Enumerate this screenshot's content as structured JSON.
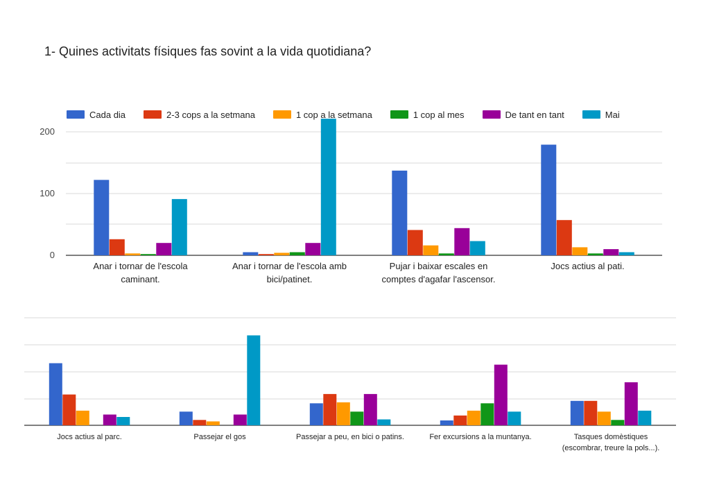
{
  "title": "1- Quines activitats físiques fas sovint a la vida quotidiana?",
  "legend_position": "top",
  "series_info": [
    {
      "name": "Cada dia",
      "color": "#3366cc"
    },
    {
      "name": "2-3 cops a la setmana",
      "color": "#dc3912"
    },
    {
      "name": "1 cop a la setmana",
      "color": "#ff9900"
    },
    {
      "name": "1 cop al mes",
      "color": "#109618"
    },
    {
      "name": "De tant en tant",
      "color": "#990099"
    },
    {
      "name": "Mai",
      "color": "#0099c6"
    }
  ],
  "chart_data": [
    {
      "type": "bar",
      "title": "1- Quines activitats físiques fas sovint a la vida quotidiana?",
      "xlabel": "",
      "ylabel": "",
      "ylim": [
        0,
        220
      ],
      "yticks": [
        0,
        100,
        200
      ],
      "grid": true,
      "categories": [
        [
          "Anar i tornar de l'escola",
          "caminant."
        ],
        [
          "Anar i tornar de l'escola amb",
          "bici/patinet."
        ],
        [
          "Pujar i baixar escales en",
          "comptes d'agafar l'ascensor."
        ],
        [
          "Jocs actius al pati."
        ]
      ],
      "series": [
        {
          "name": "Cada dia",
          "values": [
            122,
            5,
            137,
            179
          ]
        },
        {
          "name": "2-3 cops a la setmana",
          "values": [
            26,
            2,
            41,
            57
          ]
        },
        {
          "name": "1 cop a la setmana",
          "values": [
            3,
            4,
            16,
            13
          ]
        },
        {
          "name": "1 cop al mes",
          "values": [
            2,
            5,
            3,
            3
          ]
        },
        {
          "name": "De tant en tant",
          "values": [
            20,
            20,
            44,
            10
          ]
        },
        {
          "name": "Mai",
          "values": [
            91,
            221,
            23,
            5
          ]
        }
      ]
    },
    {
      "type": "bar",
      "xlabel": "",
      "ylabel": "",
      "ylim": [
        0,
        220
      ],
      "grid": true,
      "categories": [
        [
          "Jocs actius al parc."
        ],
        [
          "Passejar el gos"
        ],
        [
          "Passejar a peu, en bici o patins."
        ],
        [
          "Fer excursions a la muntanya."
        ],
        [
          "Tasques domèstiques",
          "(escombrar, treure la pols...)."
        ]
      ],
      "series": [
        {
          "name": "Cada dia",
          "values": [
            127,
            28,
            45,
            10,
            50
          ]
        },
        {
          "name": "2-3 cops a la setmana",
          "values": [
            63,
            11,
            64,
            20,
            50
          ]
        },
        {
          "name": "1 cop a la setmana",
          "values": [
            30,
            8,
            47,
            30,
            28
          ]
        },
        {
          "name": "1 cop al mes",
          "values": [
            0,
            0,
            28,
            45,
            11
          ]
        },
        {
          "name": "De tant en tant",
          "values": [
            22,
            22,
            64,
            124,
            88
          ]
        },
        {
          "name": "Mai",
          "values": [
            17,
            184,
            12,
            28,
            30
          ]
        }
      ]
    }
  ]
}
